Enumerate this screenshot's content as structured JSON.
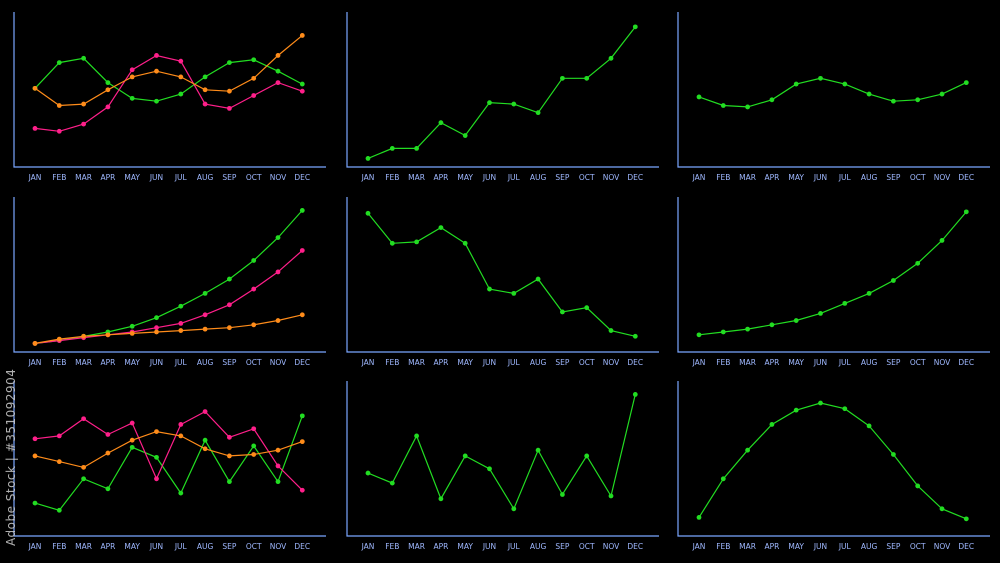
{
  "watermark": "Adobe Stock | #351092904",
  "colors": {
    "axis": "#7aa6ff",
    "tick": "#9fb8ff",
    "green": "#22dd22",
    "pink": "#ff1f8a",
    "orange": "#ff8c1a"
  },
  "chart_data": [
    {
      "type": "line",
      "categories": [
        "JAN",
        "FEB",
        "MAR",
        "APR",
        "MAY",
        "JUN",
        "JUL",
        "AUG",
        "SEP",
        "OCT",
        "NOV",
        "DEC"
      ],
      "ylim": [
        0,
        100
      ],
      "series": [
        {
          "color": "#22dd22",
          "values": [
            55,
            73,
            76,
            59,
            48,
            46,
            51,
            63,
            73,
            75,
            67,
            58
          ]
        },
        {
          "color": "#ff1f8a",
          "values": [
            27,
            25,
            30,
            42,
            68,
            78,
            74,
            44,
            41,
            50,
            59,
            53
          ]
        },
        {
          "color": "#ff8c1a",
          "values": [
            55,
            43,
            44,
            54,
            63,
            67,
            63,
            54,
            53,
            62,
            78,
            92
          ]
        }
      ]
    },
    {
      "type": "line",
      "categories": [
        "JAN",
        "FEB",
        "MAR",
        "APR",
        "MAY",
        "JUN",
        "JUL",
        "AUG",
        "SEP",
        "OCT",
        "NOV",
        "DEC"
      ],
      "ylim": [
        0,
        100
      ],
      "series": [
        {
          "color": "#22dd22",
          "values": [
            6,
            13,
            13,
            31,
            22,
            45,
            44,
            38,
            62,
            62,
            76,
            98
          ]
        }
      ]
    },
    {
      "type": "line",
      "categories": [
        "JAN",
        "FEB",
        "MAR",
        "APR",
        "MAY",
        "JUN",
        "JUL",
        "AUG",
        "SEP",
        "OCT",
        "NOV",
        "DEC"
      ],
      "ylim": [
        0,
        100
      ],
      "series": [
        {
          "color": "#22dd22",
          "values": [
            49,
            43,
            42,
            47,
            58,
            62,
            58,
            51,
            46,
            47,
            51,
            59
          ]
        }
      ]
    },
    {
      "type": "line",
      "categories": [
        "JAN",
        "FEB",
        "MAR",
        "APR",
        "MAY",
        "JUN",
        "JUL",
        "AUG",
        "SEP",
        "OCT",
        "NOV",
        "DEC"
      ],
      "ylim": [
        0,
        100
      ],
      "series": [
        {
          "color": "#22dd22",
          "values": [
            6,
            8,
            11,
            14,
            18,
            24,
            32,
            41,
            51,
            64,
            80,
            99
          ]
        },
        {
          "color": "#ff1f8a",
          "values": [
            6,
            8,
            10,
            12,
            14,
            17,
            20,
            26,
            33,
            44,
            56,
            71
          ]
        },
        {
          "color": "#ff8c1a",
          "values": [
            6,
            9,
            11,
            12,
            13,
            14,
            15,
            16,
            17,
            19,
            22,
            26
          ]
        }
      ]
    },
    {
      "type": "line",
      "categories": [
        "JAN",
        "FEB",
        "MAR",
        "APR",
        "MAY",
        "JUN",
        "JUL",
        "AUG",
        "SEP",
        "OCT",
        "NOV",
        "DEC"
      ],
      "ylim": [
        0,
        100
      ],
      "series": [
        {
          "color": "#22dd22",
          "values": [
            97,
            76,
            77,
            87,
            76,
            44,
            41,
            51,
            28,
            31,
            15,
            11
          ]
        }
      ]
    },
    {
      "type": "line",
      "categories": [
        "JAN",
        "FEB",
        "MAR",
        "APR",
        "MAY",
        "JUN",
        "JUL",
        "AUG",
        "SEP",
        "OCT",
        "NOV",
        "DEC"
      ],
      "ylim": [
        0,
        100
      ],
      "series": [
        {
          "color": "#22dd22",
          "values": [
            12,
            14,
            16,
            19,
            22,
            27,
            34,
            41,
            50,
            62,
            78,
            98
          ]
        }
      ]
    },
    {
      "type": "line",
      "categories": [
        "JAN",
        "FEB",
        "MAR",
        "APR",
        "MAY",
        "JUN",
        "JUL",
        "AUG",
        "SEP",
        "OCT",
        "NOV",
        "DEC"
      ],
      "ylim": [
        0,
        100
      ],
      "series": [
        {
          "color": "#22dd22",
          "values": [
            23,
            18,
            40,
            33,
            62,
            55,
            30,
            67,
            38,
            63,
            38,
            84
          ]
        },
        {
          "color": "#ff1f8a",
          "values": [
            68,
            70,
            82,
            71,
            79,
            40,
            78,
            87,
            69,
            75,
            49,
            32
          ]
        },
        {
          "color": "#ff8c1a",
          "values": [
            56,
            52,
            48,
            58,
            67,
            73,
            70,
            61,
            56,
            57,
            60,
            66
          ]
        }
      ]
    },
    {
      "type": "line",
      "categories": [
        "JAN",
        "FEB",
        "MAR",
        "APR",
        "MAY",
        "JUN",
        "JUL",
        "AUG",
        "SEP",
        "OCT",
        "NOV",
        "DEC"
      ],
      "ylim": [
        0,
        100
      ],
      "series": [
        {
          "color": "#22dd22",
          "values": [
            44,
            37,
            70,
            26,
            56,
            47,
            19,
            60,
            29,
            56,
            28,
            99
          ]
        }
      ]
    },
    {
      "type": "line",
      "categories": [
        "JAN",
        "FEB",
        "MAR",
        "APR",
        "MAY",
        "JUN",
        "JUL",
        "AUG",
        "SEP",
        "OCT",
        "NOV",
        "DEC"
      ],
      "ylim": [
        0,
        100
      ],
      "series": [
        {
          "color": "#22dd22",
          "values": [
            13,
            40,
            60,
            78,
            88,
            93,
            89,
            77,
            57,
            35,
            19,
            12
          ]
        }
      ]
    }
  ]
}
